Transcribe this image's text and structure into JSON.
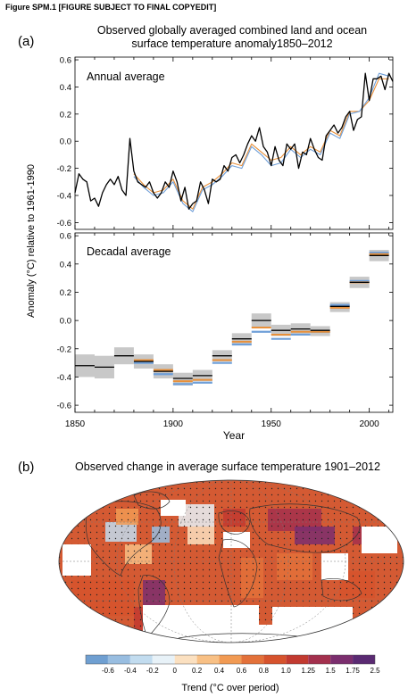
{
  "header": "Figure SPM.1 [FIGURE SUBJECT TO FINAL COPYEDIT]",
  "panel_a": {
    "letter": "(a)",
    "title_line1": "Observed globally averaged combined land and ocean",
    "title_line2": "surface temperature anomaly1850–2012",
    "ylabel": "Anomaly (°C) relative to 1961-1990",
    "xlabel": "Year",
    "top_label": "Annual average",
    "bottom_label": "Decadal average"
  },
  "panel_b": {
    "letter": "(b)",
    "title": "Observed change in average surface temperature 1901–2012",
    "colorbar_label": "Trend (°C over period)"
  },
  "colors": {
    "black_series": "#000000",
    "orange_series": "#e8903a",
    "blue_series": "#6f9fd8",
    "decadal_box": "#c8c8c8"
  },
  "chart_data": [
    {
      "type": "line",
      "title": "Annual average",
      "xlim": [
        1850,
        2012
      ],
      "ylim": [
        -0.65,
        0.62
      ],
      "yticks": [
        -0.6,
        -0.4,
        -0.2,
        0.0,
        0.2,
        0.4,
        0.6
      ],
      "xticks": [
        1850,
        1900,
        1950,
        2000
      ],
      "series": [
        {
          "color": "#e8903a",
          "x": [
            1880,
            1885,
            1890,
            1895,
            1900,
            1905,
            1910,
            1915,
            1920,
            1925,
            1930,
            1935,
            1940,
            1945,
            1950,
            1955,
            1960,
            1965,
            1970,
            1975,
            1980,
            1985,
            1990,
            1995,
            2000,
            2005,
            2010
          ],
          "y": [
            -0.24,
            -0.32,
            -0.38,
            -0.36,
            -0.28,
            -0.44,
            -0.5,
            -0.34,
            -0.3,
            -0.24,
            -0.16,
            -0.18,
            -0.02,
            -0.08,
            -0.14,
            -0.12,
            -0.04,
            -0.1,
            -0.04,
            -0.08,
            0.08,
            0.04,
            0.22,
            0.22,
            0.3,
            0.46,
            0.46
          ]
        },
        {
          "color": "#6f9fd8",
          "x": [
            1880,
            1885,
            1890,
            1895,
            1900,
            1905,
            1910,
            1915,
            1920,
            1925,
            1930,
            1935,
            1940,
            1945,
            1950,
            1955,
            1960,
            1965,
            1970,
            1975,
            1980,
            1985,
            1990,
            1995,
            2000,
            2005,
            2010
          ],
          "y": [
            -0.26,
            -0.34,
            -0.4,
            -0.38,
            -0.3,
            -0.46,
            -0.52,
            -0.36,
            -0.32,
            -0.26,
            -0.18,
            -0.2,
            -0.04,
            -0.1,
            -0.18,
            -0.16,
            -0.06,
            -0.12,
            -0.06,
            -0.1,
            0.06,
            0.02,
            0.2,
            0.22,
            0.32,
            0.5,
            0.48
          ]
        },
        {
          "color": "#000000",
          "x": [
            1850,
            1852,
            1854,
            1856,
            1858,
            1860,
            1862,
            1864,
            1866,
            1868,
            1870,
            1872,
            1874,
            1876,
            1878,
            1880,
            1882,
            1884,
            1886,
            1888,
            1890,
            1892,
            1894,
            1896,
            1898,
            1900,
            1902,
            1904,
            1906,
            1908,
            1910,
            1912,
            1914,
            1916,
            1918,
            1920,
            1922,
            1924,
            1926,
            1928,
            1930,
            1932,
            1934,
            1936,
            1938,
            1940,
            1942,
            1944,
            1946,
            1948,
            1950,
            1952,
            1954,
            1956,
            1958,
            1960,
            1962,
            1964,
            1966,
            1968,
            1970,
            1972,
            1974,
            1976,
            1978,
            1980,
            1982,
            1984,
            1986,
            1988,
            1990,
            1992,
            1994,
            1996,
            1998,
            2000,
            2002,
            2004,
            2006,
            2008,
            2010,
            2012
          ],
          "y": [
            -0.38,
            -0.24,
            -0.28,
            -0.3,
            -0.44,
            -0.42,
            -0.48,
            -0.38,
            -0.32,
            -0.28,
            -0.32,
            -0.26,
            -0.36,
            -0.4,
            0.02,
            -0.22,
            -0.3,
            -0.32,
            -0.34,
            -0.3,
            -0.38,
            -0.42,
            -0.38,
            -0.3,
            -0.34,
            -0.22,
            -0.3,
            -0.44,
            -0.34,
            -0.5,
            -0.46,
            -0.44,
            -0.3,
            -0.36,
            -0.46,
            -0.28,
            -0.3,
            -0.28,
            -0.18,
            -0.22,
            -0.12,
            -0.1,
            -0.16,
            -0.1,
            -0.02,
            0.04,
            0.0,
            0.1,
            -0.04,
            -0.08,
            -0.18,
            -0.04,
            -0.14,
            -0.18,
            -0.02,
            -0.06,
            -0.02,
            -0.2,
            -0.08,
            -0.1,
            0.02,
            -0.06,
            -0.12,
            -0.14,
            0.04,
            0.08,
            0.12,
            0.06,
            0.1,
            0.18,
            0.22,
            0.08,
            0.16,
            0.18,
            0.5,
            0.3,
            0.46,
            0.46,
            0.48,
            0.38,
            0.5,
            0.44
          ]
        }
      ]
    },
    {
      "type": "bar",
      "title": "Decadal average",
      "xlim": [
        1850,
        2012
      ],
      "ylim": [
        -0.65,
        0.62
      ],
      "yticks": [
        -0.6,
        -0.4,
        -0.2,
        0.0,
        0.2,
        0.4,
        0.6
      ],
      "xticks": [
        1850,
        1900,
        1950,
        2000
      ],
      "decades": [
        {
          "start": 1850,
          "end": 1860,
          "black": -0.32,
          "orange": null,
          "blue": null,
          "low": -0.4,
          "high": -0.24
        },
        {
          "start": 1860,
          "end": 1870,
          "black": -0.33,
          "orange": null,
          "blue": null,
          "low": -0.41,
          "high": -0.25
        },
        {
          "start": 1870,
          "end": 1880,
          "black": -0.25,
          "orange": null,
          "blue": null,
          "low": -0.31,
          "high": -0.19
        },
        {
          "start": 1880,
          "end": 1890,
          "black": -0.29,
          "orange": -0.28,
          "blue": -0.3,
          "low": -0.34,
          "high": -0.24
        },
        {
          "start": 1890,
          "end": 1900,
          "black": -0.36,
          "orange": -0.35,
          "blue": -0.38,
          "low": -0.41,
          "high": -0.31
        },
        {
          "start": 1900,
          "end": 1910,
          "black": -0.41,
          "orange": -0.43,
          "blue": -0.45,
          "low": -0.46,
          "high": -0.37
        },
        {
          "start": 1910,
          "end": 1920,
          "black": -0.39,
          "orange": -0.42,
          "blue": -0.44,
          "low": -0.43,
          "high": -0.35
        },
        {
          "start": 1920,
          "end": 1930,
          "black": -0.25,
          "orange": -0.28,
          "blue": -0.3,
          "low": -0.29,
          "high": -0.21
        },
        {
          "start": 1930,
          "end": 1940,
          "black": -0.13,
          "orange": -0.15,
          "blue": -0.17,
          "low": -0.17,
          "high": -0.09
        },
        {
          "start": 1940,
          "end": 1950,
          "black": 0.0,
          "orange": -0.05,
          "blue": -0.08,
          "low": -0.05,
          "high": 0.05
        },
        {
          "start": 1950,
          "end": 1960,
          "black": -0.07,
          "orange": -0.1,
          "blue": -0.13,
          "low": -0.11,
          "high": -0.03
        },
        {
          "start": 1960,
          "end": 1970,
          "black": -0.06,
          "orange": -0.08,
          "blue": -0.1,
          "low": -0.1,
          "high": -0.02
        },
        {
          "start": 1970,
          "end": 1980,
          "black": -0.07,
          "orange": -0.08,
          "blue": -0.08,
          "low": -0.11,
          "high": -0.04
        },
        {
          "start": 1980,
          "end": 1990,
          "black": 0.1,
          "orange": 0.09,
          "blue": 0.11,
          "low": 0.06,
          "high": 0.13
        },
        {
          "start": 1990,
          "end": 2000,
          "black": 0.27,
          "orange": 0.27,
          "blue": 0.28,
          "low": 0.23,
          "high": 0.31
        },
        {
          "start": 2000,
          "end": 2010,
          "black": 0.46,
          "orange": 0.47,
          "blue": 0.48,
          "low": 0.42,
          "high": 0.5
        }
      ]
    },
    {
      "type": "heatmap",
      "title": "Observed change in average surface temperature 1901–2012",
      "colorbar": {
        "boundaries": [
          "-0.6",
          "-0.4",
          "-0.2",
          "0",
          "0.2",
          "0.4",
          "0.6",
          "0.8",
          "1.0",
          "1.25",
          "1.5",
          "1.75",
          "2.5"
        ],
        "colors": [
          "#6f9fd1",
          "#98bde0",
          "#c2dcef",
          "#e8f2f8",
          "#fbe0c0",
          "#f8c085",
          "#f19a53",
          "#e3713a",
          "#d6532d",
          "#c23a30",
          "#a3304d",
          "#7b2e6e",
          "#5a2a72"
        ]
      }
    }
  ]
}
